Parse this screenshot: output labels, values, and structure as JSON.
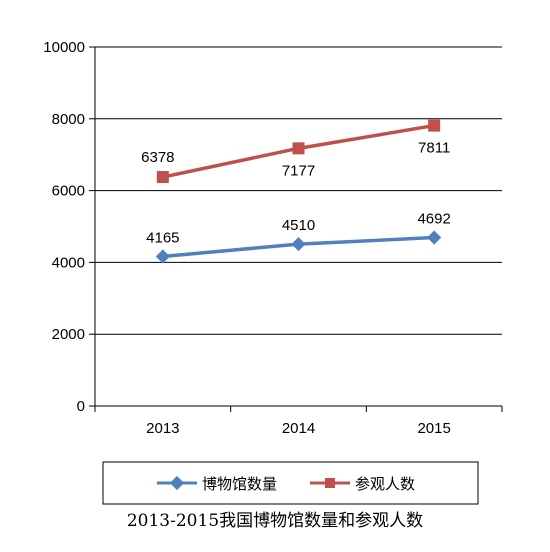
{
  "chart_data": {
    "type": "line",
    "title": "2013-2015我国博物馆数量和参观人数",
    "categories": [
      "2013",
      "2014",
      "2015"
    ],
    "series": [
      {
        "name": "博物馆数量",
        "values": [
          4165,
          4510,
          4692
        ],
        "color": "#4f81bd",
        "marker": "diamond"
      },
      {
        "name": "参观人数",
        "values": [
          6378,
          7177,
          7811
        ],
        "color": "#c0504d",
        "marker": "square"
      }
    ],
    "ylim": [
      0,
      10000
    ],
    "yticks": [
      0,
      2000,
      4000,
      6000,
      8000,
      10000
    ],
    "grid": true,
    "legend_position": "bottom",
    "xlabel": "",
    "ylabel": ""
  }
}
